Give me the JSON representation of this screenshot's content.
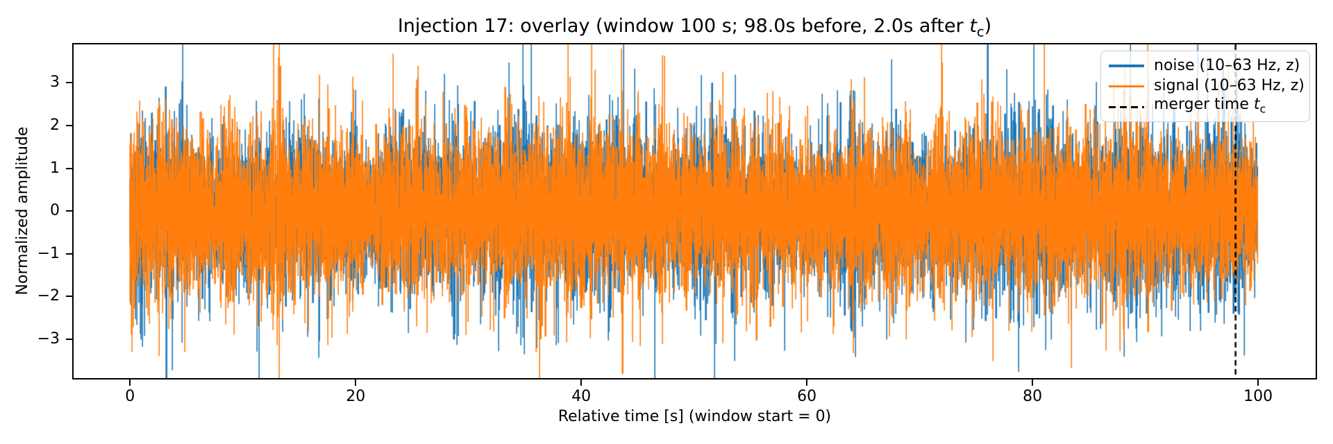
{
  "figure": {
    "title": {
      "prefix": "Injection 17: overlay (window 100 s; 98.0s before, 2.0s after ",
      "tc_math": "t",
      "tc_sub": "c",
      "suffix": ")"
    },
    "x_axis_label": "Relative time [s] (window start = 0)",
    "y_axis_label": "Normalized amplitude"
  },
  "legend": {
    "items": [
      {
        "swatch": "solid",
        "color": "#1f77b4",
        "label": "noise (10–63 Hz, z)"
      },
      {
        "swatch": "solid",
        "color": "#ff7f0e",
        "label": "signal (10–63 Hz, z)"
      },
      {
        "swatch": "dashed",
        "color": "#000000",
        "label": "merger time ",
        "math": "t",
        "sub": "c"
      }
    ]
  },
  "chart_data": {
    "type": "line",
    "title": "Injection 17: overlay (window 100 s; 98.0s before, 2.0s after t_c)",
    "xlabel": "Relative time [s] (window start = 0)",
    "ylabel": "Normalized amplitude",
    "xlim": [
      -5.0,
      105.1
    ],
    "ylim": [
      -3.91,
      3.9
    ],
    "x_ticks": [
      0,
      20,
      40,
      60,
      80,
      100
    ],
    "x_tick_labels": [
      "0",
      "20",
      "40",
      "60",
      "80",
      "100"
    ],
    "y_ticks": [
      3,
      2,
      1,
      0,
      -1,
      -2,
      -3
    ],
    "y_tick_labels": [
      "3",
      "2",
      "1",
      "0",
      "−1",
      "−2",
      "−3"
    ],
    "grid": false,
    "legend_position": "upper right",
    "window_s": 100,
    "before_s": 98.0,
    "after_s": 2.0,
    "band_hz": "10–63",
    "z_scored": true,
    "series": [
      {
        "name": "noise (10–63 Hz, z)",
        "color": "#1f77b4",
        "description": "z-scored band-passed detector noise, 10–63 Hz, dense stochastic trace spanning 0–100 s, amplitude mostly within ±1.3 with spikes to ±3.5",
        "seed": 20177,
        "start_boost": 0.0,
        "end_boost": 0.12
      },
      {
        "name": "signal (10–63 Hz, z)",
        "color": "#ff7f0e",
        "description": "z-scored band-passed noise+signal stream, 10–63 Hz, drawn over the noise trace, amplitude mostly within ±1.3 with spikes to ±3.5",
        "seed": 91117,
        "start_boost": 0.1,
        "end_boost": -0.05
      }
    ],
    "merger_line": {
      "t": 98.0,
      "color": "#000000",
      "style": "dashed",
      "label": "merger time t_c"
    },
    "generator": {
      "samples_per_column": 9,
      "sigma": 0.92,
      "amp_base": 0.72,
      "amp_ar_coeff": 0.8,
      "amp_ar_gain": 0.45,
      "slow_mod": [
        {
          "period": 43.0,
          "amp": 0.05,
          "phase": 2.0
        },
        {
          "period": 12.7,
          "amp": 0.05,
          "phase": 0.7
        }
      ]
    }
  }
}
